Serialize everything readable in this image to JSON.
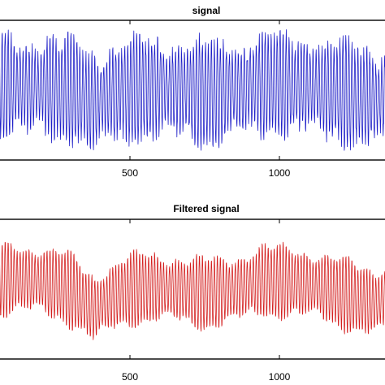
{
  "chart_data": [
    {
      "type": "line",
      "title": "signal",
      "xlabel": "",
      "ylabel": "",
      "xticks": [
        500,
        1000
      ],
      "xtick_labels": [
        "500",
        "1000"
      ],
      "xlim": [
        0,
        1400
      ],
      "ylim": [
        -1.6,
        1.6
      ],
      "grid": false,
      "series": [
        {
          "color": "#2020c8",
          "period": 10,
          "amplitude": 1.2,
          "noise_amplitude": 0.18,
          "baseline": {
            "x": [
              0,
              100,
              200,
              300,
              380,
              460,
              550,
              650,
              750,
              850,
              950,
              1050,
              1150,
              1250,
              1320,
              1400
            ],
            "y": [
              0.05,
              0.1,
              0.08,
              0.0,
              -0.25,
              -0.05,
              0.05,
              0.0,
              -0.05,
              0.0,
              0.15,
              0.12,
              0.05,
              -0.1,
              -0.2,
              -0.05
            ]
          }
        }
      ]
    },
    {
      "type": "line",
      "title": "Filtered signal",
      "xlabel": "",
      "ylabel": "",
      "xticks": [
        500,
        1000
      ],
      "xtick_labels": [
        "500",
        "1000"
      ],
      "xlim": [
        0,
        1400
      ],
      "ylim": [
        -1.6,
        1.6
      ],
      "grid": false,
      "series": [
        {
          "color": "#d42020",
          "period": 10,
          "amplitude": 0.85,
          "noise_amplitude": 0.05,
          "baseline": {
            "x": [
              0,
              100,
              200,
              300,
              380,
              460,
              550,
              650,
              750,
              850,
              950,
              1050,
              1150,
              1250,
              1320,
              1400
            ],
            "y": [
              0.1,
              0.25,
              0.2,
              0.0,
              -0.45,
              -0.1,
              0.05,
              0.0,
              -0.1,
              0.0,
              0.2,
              0.15,
              0.05,
              -0.2,
              -0.3,
              -0.05
            ]
          }
        }
      ]
    }
  ]
}
